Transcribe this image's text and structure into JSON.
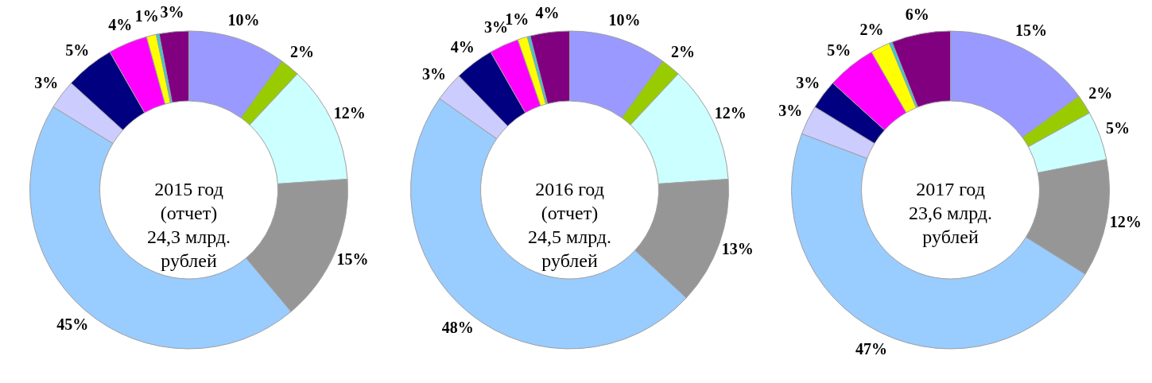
{
  "chart_data": [
    {
      "type": "donut",
      "title": "2015 год\n(отчет)\n24,3 млрд.\nрублей",
      "categories": [
        null,
        null,
        null,
        null,
        null,
        null,
        null,
        null,
        null,
        null,
        null
      ],
      "values": [
        10,
        2,
        12,
        15,
        45,
        3,
        5,
        4,
        1,
        0.3,
        3
      ],
      "value_labels": [
        "10%",
        "2%",
        "12%",
        "15%",
        "45%",
        "3%",
        "5%",
        "4%",
        "1%",
        null,
        "3%"
      ],
      "colors": [
        "#9999ff",
        "#99cc00",
        "#ccffff",
        "#969696",
        "#99ccff",
        "#ccccff",
        "#000080",
        "#ff00ff",
        "#ffff00",
        "#33cccc",
        "#800080"
      ]
    },
    {
      "type": "donut",
      "title": "2016 год\n(отчет)\n24,5 млрд.\nрублей",
      "categories": [
        null,
        null,
        null,
        null,
        null,
        null,
        null,
        null,
        null,
        null,
        null
      ],
      "values": [
        10,
        2,
        12,
        13,
        48,
        3,
        4,
        3,
        1,
        0.3,
        4
      ],
      "value_labels": [
        "10%",
        "2%",
        "12%",
        "13%",
        "48%",
        "3%",
        "4%",
        "3%",
        "1%",
        null,
        "4%"
      ],
      "colors": [
        "#9999ff",
        "#99cc00",
        "#ccffff",
        "#969696",
        "#99ccff",
        "#ccccff",
        "#000080",
        "#ff00ff",
        "#ffff00",
        "#33cccc",
        "#800080"
      ]
    },
    {
      "type": "donut",
      "title": "2017 год\n23,6 млрд.\nрублей",
      "categories": [
        null,
        null,
        null,
        null,
        null,
        null,
        null,
        null,
        null,
        null,
        null
      ],
      "values": [
        15,
        2,
        5,
        12,
        47,
        3,
        3,
        5,
        2,
        0.3,
        6
      ],
      "value_labels": [
        "15%",
        "2%",
        "5%",
        "12%",
        "47%",
        "3%",
        "3%",
        "5%",
        "2%",
        null,
        "6%"
      ],
      "colors": [
        "#9999ff",
        "#99cc00",
        "#ccffff",
        "#969696",
        "#99ccff",
        "#ccccff",
        "#000080",
        "#ff00ff",
        "#ffff00",
        "#33cccc",
        "#800080"
      ]
    }
  ]
}
